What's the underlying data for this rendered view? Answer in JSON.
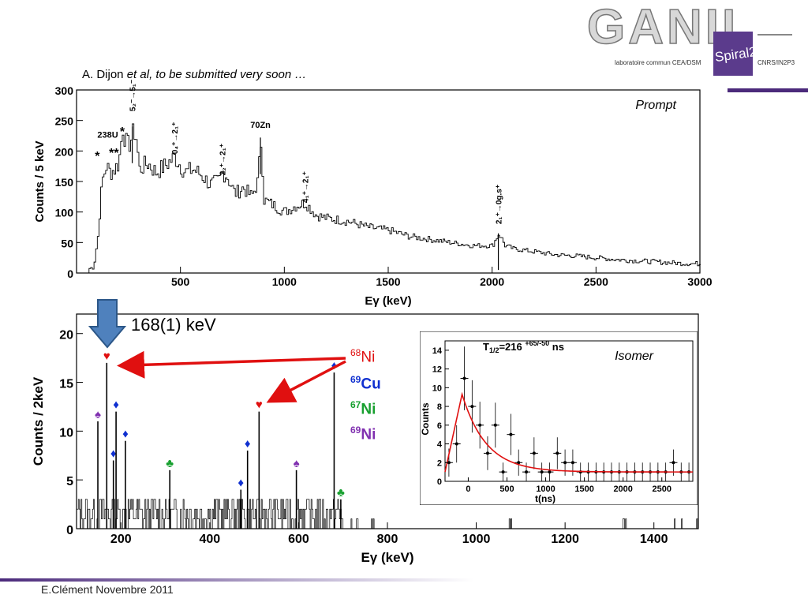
{
  "citation": {
    "author": "A. Dijon ",
    "etal": "et al",
    "rest": ", to be submitted very soon …"
  },
  "footer": "E.Clément  Novembre 2011",
  "logo": {
    "main": "GANIL",
    "sub": "Spiral2",
    "lab": "laboratoire commun CEA/DSM",
    "lab2": "CNRS/IN2P3"
  },
  "energy_callout": "168(1) keV",
  "legend_isotopes": [
    {
      "mass": "68",
      "symbol": "Ni",
      "color": "#e01010"
    },
    {
      "mass": "69",
      "symbol": "Cu",
      "color": "#1030d0"
    },
    {
      "mass": "67",
      "symbol": "Ni",
      "color": "#18a030"
    },
    {
      "mass": "69",
      "symbol": "Ni",
      "color": "#8030b0"
    }
  ],
  "colors": {
    "arrow_blue": "#4f81bd",
    "red_arrow": "#e01010",
    "fit_line": "#e01010",
    "accent_purple": "#4b2a7b"
  },
  "chart_data": [
    {
      "type": "line",
      "name": "prompt",
      "label": "Prompt",
      "xlabel": "Eγ (keV)",
      "ylabel": "Counts / 5 keV",
      "xlim": [
        0,
        3000
      ],
      "ylim": [
        0,
        300
      ],
      "xticks": [
        500,
        1000,
        1500,
        2000,
        2500,
        3000
      ],
      "yticks": [
        0,
        50,
        100,
        150,
        200,
        250,
        300
      ],
      "grid": false,
      "x": [
        80,
        100,
        120,
        140,
        160,
        180,
        200,
        220,
        240,
        260,
        280,
        300,
        340,
        380,
        420,
        470,
        520,
        560,
        600,
        640,
        680,
        700,
        720,
        760,
        800,
        840,
        870,
        885,
        900,
        950,
        1000,
        1050,
        1100,
        1150,
        1200,
        1300,
        1400,
        1500,
        1600,
        1700,
        1800,
        1900,
        2000,
        2030,
        2060,
        2100,
        2200,
        2300,
        2400,
        2500,
        2600,
        2700,
        2800,
        2900,
        3000
      ],
      "values": [
        10,
        60,
        150,
        175,
        165,
        170,
        180,
        240,
        205,
        220,
        235,
        170,
        180,
        165,
        175,
        190,
        165,
        170,
        160,
        145,
        150,
        165,
        160,
        130,
        140,
        125,
        150,
        220,
        120,
        110,
        100,
        110,
        115,
        95,
        90,
        85,
        75,
        70,
        60,
        55,
        50,
        45,
        45,
        65,
        45,
        40,
        35,
        30,
        28,
        25,
        22,
        20,
        18,
        16,
        15
      ],
      "annotations": [
        {
          "x": 100,
          "text": "*"
        },
        {
          "x": 150,
          "text": "238U"
        },
        {
          "x": 180,
          "text": "**"
        },
        {
          "x": 220,
          "text": "*"
        },
        {
          "x": 268,
          "text": "5₂⁻→5₁⁻"
        },
        {
          "x": 470,
          "text": "0₄⁺→2₁⁺"
        },
        {
          "x": 700,
          "text": "2₂⁺→2₁⁺"
        },
        {
          "x": 885,
          "text": "70Zn"
        },
        {
          "x": 1100,
          "text": "4₁⁺→2₁⁺"
        },
        {
          "x": 2030,
          "text": "2₁⁺→0g.s⁺"
        }
      ]
    },
    {
      "type": "line",
      "name": "isomer",
      "xlabel": "Eγ (keV)",
      "ylabel": "Counts / 2keV",
      "xlim": [
        100,
        1500
      ],
      "ylim": [
        0,
        22
      ],
      "xticks": [
        200,
        400,
        600,
        800,
        1000,
        1200,
        1400
      ],
      "yticks": [
        0,
        5,
        10,
        15,
        20
      ],
      "grid": false,
      "peaks": [
        {
          "x": 148,
          "value": 11,
          "marker": "spade",
          "color": "#8030b0"
        },
        {
          "x": 168,
          "value": 17,
          "marker": "heart",
          "color": "#e01010"
        },
        {
          "x": 183,
          "value": 7,
          "marker": "diamond",
          "color": "#1030d0"
        },
        {
          "x": 189,
          "value": 12,
          "marker": "diamond",
          "color": "#1030d0"
        },
        {
          "x": 210,
          "value": 9,
          "marker": "diamond",
          "color": "#1030d0"
        },
        {
          "x": 310,
          "value": 6,
          "marker": "club",
          "color": "#18a030"
        },
        {
          "x": 470,
          "value": 4,
          "marker": "diamond",
          "color": "#1030d0"
        },
        {
          "x": 485,
          "value": 8,
          "marker": "diamond",
          "color": "#1030d0"
        },
        {
          "x": 511,
          "value": 12,
          "marker": "heart",
          "color": "#e01010"
        },
        {
          "x": 595,
          "value": 6,
          "marker": "spade",
          "color": "#8030b0"
        },
        {
          "x": 680,
          "value": 16,
          "marker": "diamond",
          "color": "#1030d0"
        },
        {
          "x": 695,
          "value": 3,
          "marker": "club",
          "color": "#18a030"
        }
      ]
    },
    {
      "type": "scatter",
      "name": "decay",
      "label": "Isomer",
      "xlabel": "t(ns)",
      "ylabel": "Counts",
      "halflife": {
        "base": "T",
        "sub": "1/2",
        "value": "=216 ",
        "sup": "+65/-50",
        "unit": " ns"
      },
      "xlim": [
        -300,
        2900
      ],
      "ylim": [
        0,
        15
      ],
      "xticks": [
        0,
        500,
        1000,
        1500,
        2000,
        2500
      ],
      "yticks": [
        0,
        2,
        4,
        6,
        8,
        10,
        12,
        14
      ],
      "grid": false,
      "points": [
        [
          -250,
          2,
          1.5
        ],
        [
          -150,
          4,
          2
        ],
        [
          -50,
          11,
          3.4
        ],
        [
          50,
          8,
          2.8
        ],
        [
          150,
          6,
          2.5
        ],
        [
          250,
          3,
          1.8
        ],
        [
          350,
          6,
          2.4
        ],
        [
          450,
          1,
          1.0
        ],
        [
          550,
          5,
          2.2
        ],
        [
          650,
          2,
          1.4
        ],
        [
          750,
          1,
          1.0
        ],
        [
          850,
          3,
          1.7
        ],
        [
          950,
          1,
          1.0
        ],
        [
          1050,
          1,
          1.0
        ],
        [
          1150,
          3,
          1.7
        ],
        [
          1250,
          2,
          1.4
        ],
        [
          1350,
          2,
          1.4
        ],
        [
          1450,
          1,
          1.0
        ],
        [
          1550,
          1,
          1.0
        ],
        [
          1650,
          1,
          1.0
        ],
        [
          1750,
          1,
          1.0
        ],
        [
          1850,
          1,
          1.0
        ],
        [
          1950,
          1,
          1.0
        ],
        [
          2050,
          1,
          1.0
        ],
        [
          2150,
          1,
          1.0
        ],
        [
          2250,
          1,
          1.0
        ],
        [
          2350,
          1,
          1.0
        ],
        [
          2450,
          1,
          1.0
        ],
        [
          2550,
          1,
          1.0
        ],
        [
          2650,
          2,
          1.4
        ],
        [
          2750,
          1,
          1.0
        ],
        [
          2850,
          1,
          1.0
        ]
      ],
      "fit": {
        "background": 1.0,
        "amplitude": 8.3,
        "halflife_ns": 216,
        "t0": -80
      }
    }
  ]
}
